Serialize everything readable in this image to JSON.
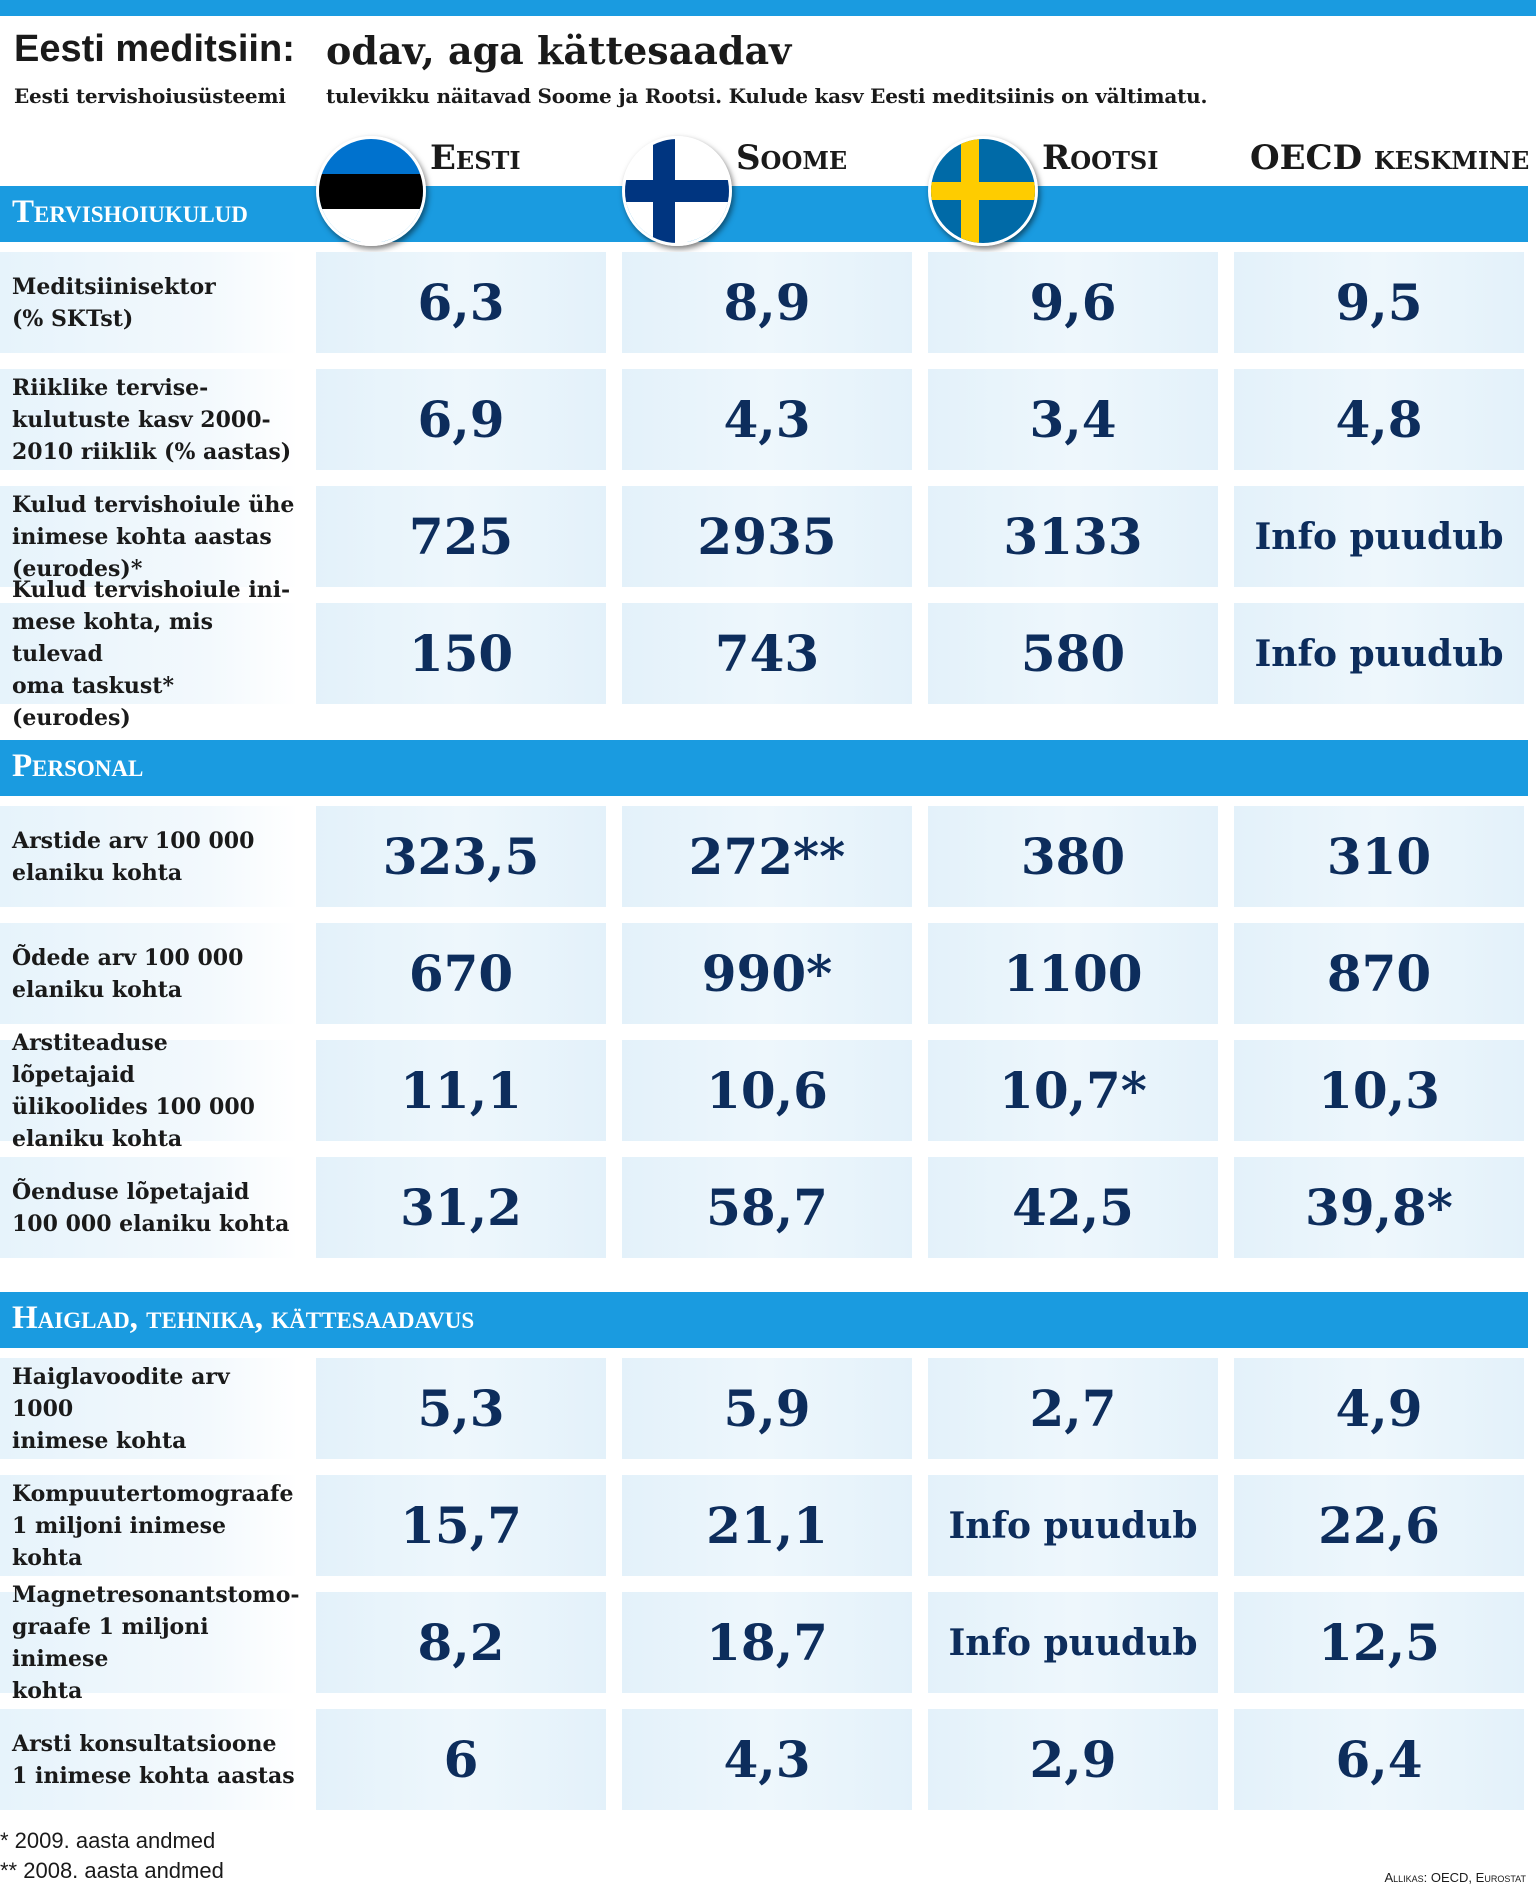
{
  "title_left": "Eesti meditsiin:",
  "title_right": "odav, aga kättesaadav",
  "subtitle_left": "Eesti tervishoiusüsteemi",
  "subtitle_right": "tulevikku näitavad Soome ja Rootsi. Kulude kasv Eesti meditsiinis on vältimatu.",
  "columns": [
    {
      "label": "Eesti",
      "flag": "estonia-flag"
    },
    {
      "label": "Soome",
      "flag": "finland-flag"
    },
    {
      "label": "Rootsi",
      "flag": "sweden-flag"
    },
    {
      "label": "OECD keskmine",
      "flag": ""
    }
  ],
  "colors": {
    "band": "#1a9be0",
    "value_text": "#0d2d5c",
    "estonia": [
      "#0072ce",
      "#000000",
      "#ffffff"
    ],
    "finland": [
      "#ffffff",
      "#003580"
    ],
    "sweden": [
      "#006aa7",
      "#fecc00"
    ]
  },
  "chart_data": {
    "type": "table",
    "columns": [
      "Eesti",
      "Soome",
      "Rootsi",
      "OECD keskmine"
    ],
    "sections": [
      {
        "title": "Tervishoiukulud",
        "rows": [
          {
            "label": "Meditsiinisektor\n(% SKTst)",
            "values": [
              "6,3",
              "8,9",
              "9,6",
              "9,5"
            ]
          },
          {
            "label": "Riiklike tervise-\nkulutuste kasv 2000-\n2010 riiklik (% aastas)",
            "values": [
              "6,9",
              "4,3",
              "3,4",
              "4,8"
            ]
          },
          {
            "label": "Kulud tervishoiule ühe\ninimese kohta aastas\n(eurodes)*",
            "values": [
              "725",
              "2935",
              "3133",
              "Info puudub"
            ]
          },
          {
            "label": "Kulud tervishoiule ini-\nmese kohta, mis tulevad\noma taskust* (eurodes)",
            "values": [
              "150",
              "743",
              "580",
              "Info puudub"
            ]
          }
        ]
      },
      {
        "title": "Personal",
        "rows": [
          {
            "label": "Arstide arv 100 000\nelaniku kohta",
            "values": [
              "323,5",
              "272**",
              "380",
              "310"
            ]
          },
          {
            "label": "Õdede arv 100 000\nelaniku kohta",
            "values": [
              "670",
              "990*",
              "1100",
              "870"
            ]
          },
          {
            "label": "Arstiteaduse lõpetajaid\nülikoolides 100 000\nelaniku kohta",
            "values": [
              "11,1",
              "10,6",
              "10,7*",
              "10,3"
            ]
          },
          {
            "label": "Õenduse lõpetajaid\n100 000 elaniku kohta",
            "values": [
              "31,2",
              "58,7",
              "42,5",
              "39,8*"
            ]
          }
        ]
      },
      {
        "title": "Haiglad, tehnika,  kättesaadavus",
        "rows": [
          {
            "label": "Haiglavoodite arv 1000\ninimese kohta",
            "values": [
              "5,3",
              "5,9",
              "2,7",
              "4,9"
            ]
          },
          {
            "label": "Kompuutertomograafe\n1 miljoni inimese kohta",
            "values": [
              "15,7",
              "21,1",
              "Info puudub",
              "22,6"
            ]
          },
          {
            "label": "Magnetresonantstomo-\ngraafe 1 miljoni inimese\nkohta",
            "values": [
              "8,2",
              "18,7",
              "Info puudub",
              "12,5"
            ]
          },
          {
            "label": "Arsti konsultatsioone\n1 inimese kohta aastas",
            "values": [
              "6",
              "4,3",
              "2,9",
              "6,4"
            ]
          }
        ]
      }
    ]
  },
  "footnotes": [
    "* 2009. aasta andmed",
    "** 2008. aasta andmed"
  ],
  "source": "Allikas: OECD, Eurostat"
}
